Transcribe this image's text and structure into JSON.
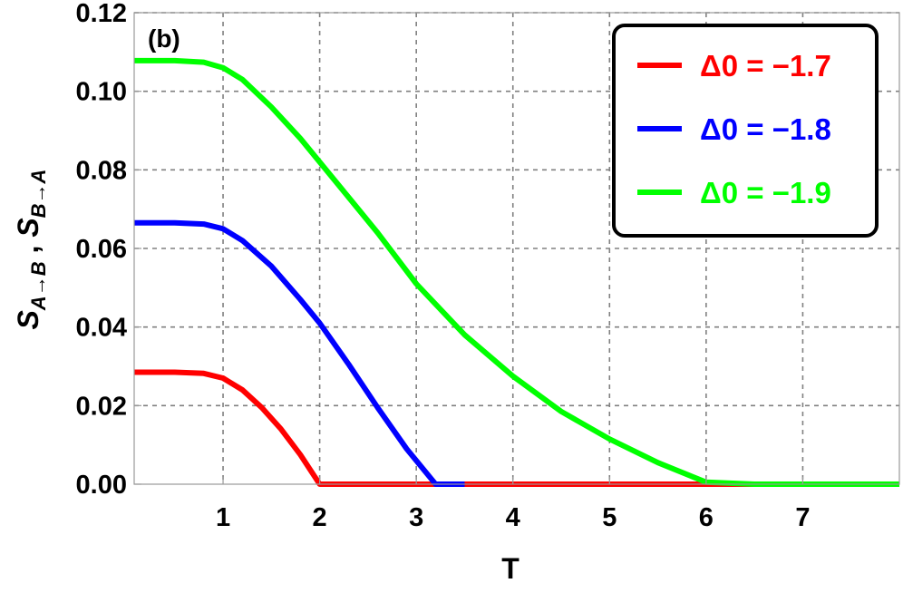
{
  "chart_data": {
    "type": "line",
    "panel_label": "(b)",
    "xlabel": "T",
    "ylabel": "S_{A→B} , S_{B→A}",
    "ylabel_parts": {
      "s1": "S",
      "sub1": "A→B",
      "sep": " , ",
      "s2": "S",
      "sub2": "B→A"
    },
    "xlim": [
      0.08,
      8.0
    ],
    "ylim": [
      0,
      0.12
    ],
    "x_ticks": [
      1,
      2,
      3,
      4,
      5,
      6,
      7
    ],
    "x_tick_labels": [
      "1",
      "2",
      "3",
      "4",
      "5",
      "6",
      "7"
    ],
    "y_ticks": [
      0,
      0.02,
      0.04,
      0.06,
      0.08,
      0.1,
      0.12
    ],
    "y_tick_labels": [
      "0.00",
      "0.02",
      "0.04",
      "0.06",
      "0.08",
      "0.10",
      "0.12"
    ],
    "grid": true,
    "legend_position": "top-right",
    "series": [
      {
        "name": "Δ0 = −1.7",
        "color": "#ff0000",
        "x": [
          0.08,
          0.5,
          0.8,
          1.0,
          1.2,
          1.4,
          1.6,
          1.8,
          2.0,
          2.5,
          3.0,
          4.0,
          5.0,
          6.0,
          7.0,
          8.0
        ],
        "y": [
          0.0285,
          0.0285,
          0.0282,
          0.027,
          0.024,
          0.0195,
          0.014,
          0.0075,
          0.0,
          0,
          0,
          0,
          0,
          0,
          0,
          0
        ]
      },
      {
        "name": "Δ0 = −1.8",
        "color": "#0000ff",
        "x": [
          0.08,
          0.5,
          0.8,
          1.0,
          1.2,
          1.5,
          1.8,
          2.0,
          2.3,
          2.6,
          2.9,
          3.2,
          3.5,
          4.0,
          5.0,
          6.0,
          7.0,
          8.0
        ],
        "y": [
          0.0665,
          0.0665,
          0.0662,
          0.065,
          0.062,
          0.0555,
          0.047,
          0.041,
          0.0305,
          0.0195,
          0.009,
          0.0,
          0,
          0,
          0,
          0,
          0,
          0
        ],
        "hidden_after_x": 3.6
      },
      {
        "name": "Δ0 = −1.9",
        "color": "#00ff00",
        "x": [
          0.08,
          0.5,
          0.8,
          1.0,
          1.2,
          1.5,
          1.8,
          2.0,
          2.3,
          2.6,
          3.0,
          3.5,
          4.0,
          4.5,
          5.0,
          5.5,
          6.0,
          6.5,
          7.0,
          7.5,
          8.0
        ],
        "y": [
          0.1078,
          0.1078,
          0.1074,
          0.106,
          0.103,
          0.096,
          0.088,
          0.082,
          0.073,
          0.064,
          0.051,
          0.038,
          0.0275,
          0.0185,
          0.0115,
          0.0055,
          0.0005,
          0,
          0,
          0,
          0
        ]
      }
    ]
  }
}
